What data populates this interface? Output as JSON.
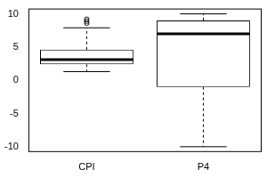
{
  "chart_data": {
    "type": "boxplot",
    "categories": [
      "CPI",
      "P4"
    ],
    "boxes": [
      {
        "min": 1.3,
        "q1": 2.4,
        "median": 3.1,
        "q3": 4.6,
        "max": 7.9,
        "outliers": [
          8.6,
          8.9,
          9.2
        ]
      },
      {
        "min": -10,
        "q1": -1,
        "median": 7,
        "q3": 9,
        "max": 10,
        "outliers": []
      }
    ],
    "color": "#ffffff",
    "ylim": [
      -10.8,
      10.8
    ],
    "yticks": [
      -10,
      -5,
      0,
      5,
      10
    ],
    "grid": false
  }
}
